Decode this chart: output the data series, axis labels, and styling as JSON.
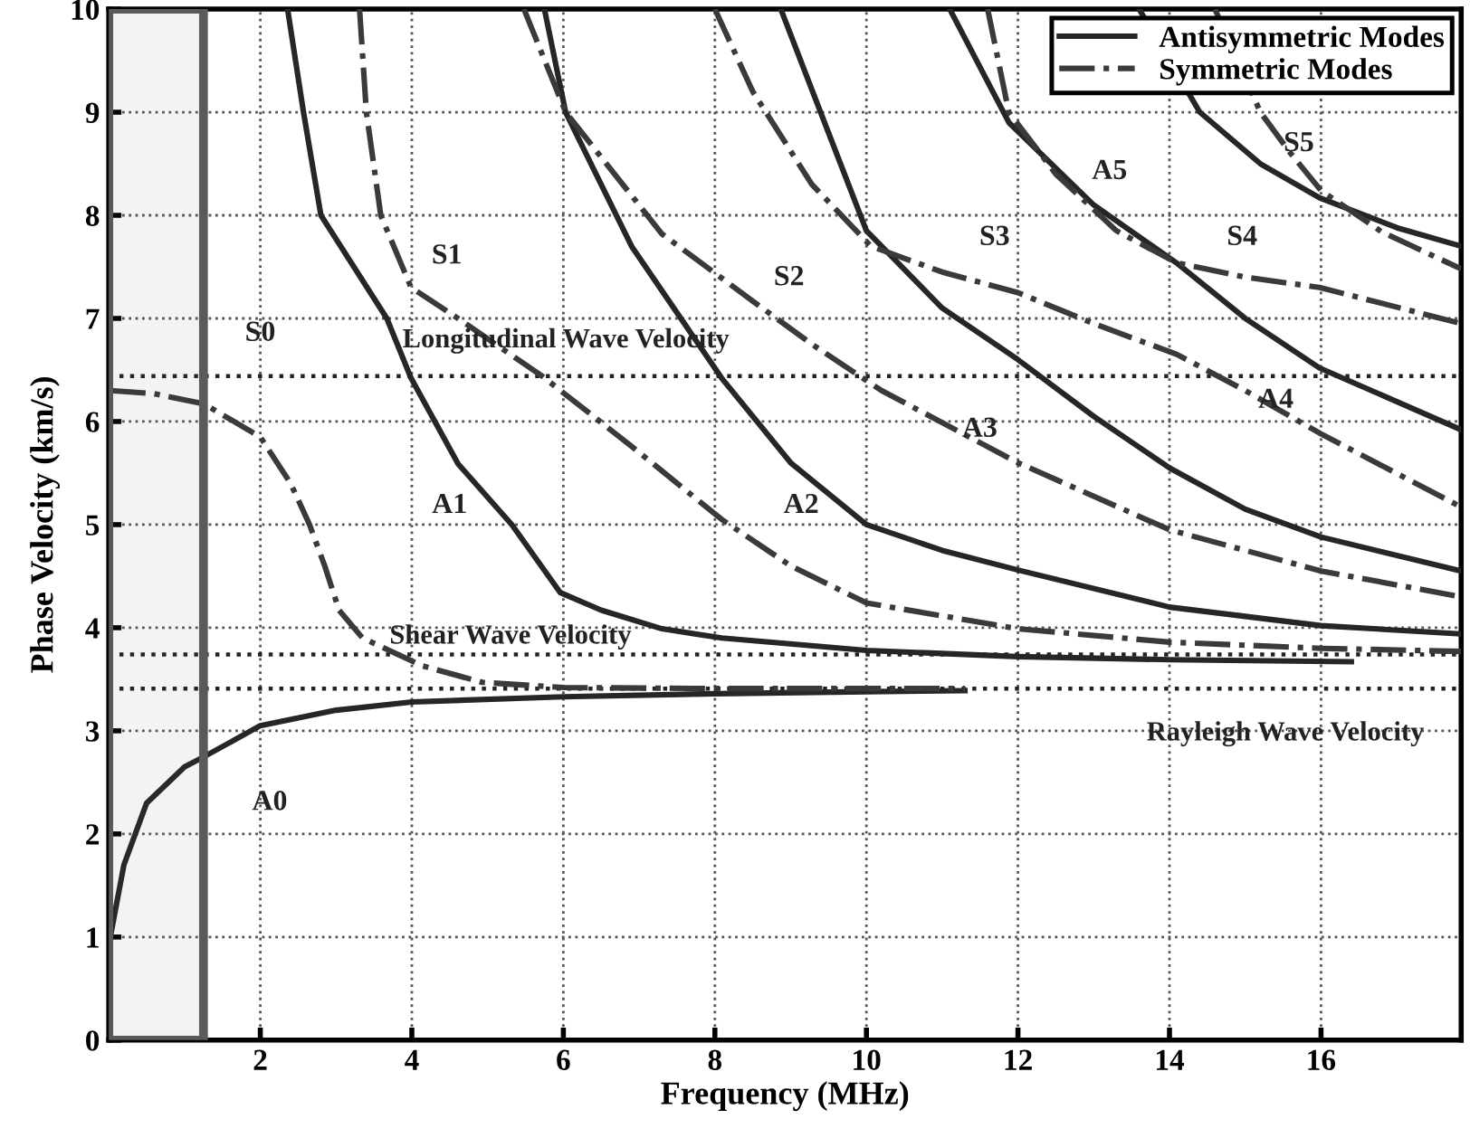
{
  "chart_data": {
    "type": "line",
    "xlabel": "Frequency (MHz)",
    "ylabel": "Phase Velocity (km/s)",
    "xlim": [
      0,
      17.85
    ],
    "ylim": [
      0,
      10
    ],
    "xticks": [
      2,
      4,
      6,
      8,
      10,
      12,
      14,
      16
    ],
    "yticks": [
      0,
      1,
      2,
      3,
      4,
      5,
      6,
      7,
      8,
      9,
      10
    ],
    "grid": true,
    "legend": "top right",
    "marker": "none",
    "series": [
      {
        "name": "Antisymmetric Modes",
        "color": "#262626",
        "line_style": "solid",
        "x": [
          0.02,
          0.2,
          0.5,
          1,
          1.26,
          2,
          3,
          4,
          6,
          8,
          10,
          11.3,
          null,
          2.36,
          2.57,
          2.8,
          3.67,
          3.99,
          4.61,
          5.32,
          5.96,
          6.5,
          7.3,
          8.09,
          10,
          12,
          14,
          16.4,
          null,
          5.75,
          6.03,
          6.9,
          8.09,
          9,
          10,
          11,
          12,
          14,
          16,
          17.85,
          null,
          8.87,
          9.5,
          10,
          11,
          12,
          13,
          14,
          15,
          16,
          17.85,
          null,
          11.1,
          11.88,
          13,
          14.09,
          15,
          15.98,
          17.85,
          null,
          13.6,
          14.4,
          15.2,
          15.98,
          17,
          17.85
        ],
        "values": [
          1.0,
          1.7,
          2.3,
          2.65,
          2.75,
          3.05,
          3.2,
          3.28,
          3.33,
          3.36,
          3.38,
          3.39,
          null,
          10,
          9,
          8,
          7,
          6.42,
          5.59,
          5.0,
          4.34,
          4.17,
          3.99,
          3.9,
          3.78,
          3.72,
          3.69,
          3.67,
          null,
          10,
          9,
          7.7,
          6.42,
          5.6,
          5.0,
          4.75,
          4.56,
          4.2,
          4.02,
          3.94,
          null,
          10,
          8.8,
          7.85,
          7.1,
          6.6,
          6.05,
          5.55,
          5.15,
          4.88,
          4.55,
          null,
          10,
          8.9,
          8.1,
          7.54,
          7.0,
          6.52,
          5.92,
          null,
          10,
          9.0,
          8.5,
          8.17,
          7.88,
          7.7
        ]
      },
      {
        "name": "Symmetric Modes",
        "color": "#3a3a3a",
        "line_style": "dashdot",
        "x": [
          0.02,
          0.6,
          1.26,
          2.0,
          2.4,
          2.65,
          2.85,
          3.04,
          3.35,
          4.14,
          4.93,
          6,
          8,
          11.3,
          null,
          3.31,
          3.4,
          3.59,
          3.99,
          4.61,
          5.72,
          6.9,
          8.09,
          9,
          10,
          12,
          14,
          16,
          17.85,
          null,
          5.48,
          6.03,
          7.3,
          8.57,
          9.28,
          10.2,
          12,
          14,
          16,
          17.85,
          null,
          8.0,
          8.5,
          9.28,
          10.06,
          11,
          12,
          13,
          14.1,
          15,
          16,
          17.85,
          null,
          11.6,
          11.88,
          12.5,
          13.3,
          14.09,
          15,
          15.98,
          17.85,
          null,
          14.6,
          15.2,
          15.6,
          16,
          16.8,
          17.85
        ],
        "values": [
          6.3,
          6.27,
          6.17,
          5.85,
          5.4,
          5.0,
          4.6,
          4.17,
          3.9,
          3.63,
          3.47,
          3.42,
          3.41,
          3.41,
          null,
          10,
          9,
          8,
          7.3,
          7.0,
          6.44,
          5.76,
          5.05,
          4.6,
          4.24,
          3.99,
          3.86,
          3.8,
          3.77,
          null,
          10,
          9,
          7.82,
          7.13,
          6.75,
          6.3,
          5.6,
          4.95,
          4.55,
          4.3,
          null,
          10,
          9.2,
          8.3,
          7.7,
          7.45,
          7.25,
          6.95,
          6.65,
          6.3,
          5.88,
          5.17,
          null,
          10,
          9.0,
          8.4,
          7.85,
          7.54,
          7.4,
          7.3,
          6.95,
          null,
          10,
          9.0,
          8.6,
          8.24,
          7.84,
          7.48
        ]
      }
    ],
    "ref_lines": [
      {
        "axis": "y",
        "value": 6.44,
        "color": "#222222",
        "line_style": "dotted",
        "label": "Longitudinal Wave Velocity"
      },
      {
        "axis": "y",
        "value": 3.74,
        "color": "#222222",
        "line_style": "dotted",
        "label": "Shear Wave Velocity"
      },
      {
        "axis": "y",
        "value": 3.41,
        "color": "#222222",
        "line_style": "dotted",
        "label": "Rayleigh Wave Velocity"
      }
    ],
    "bands": [
      {
        "axis": "x",
        "from": 0,
        "to": 1.25,
        "color": "#5a5a5a"
      }
    ],
    "annotations": [
      "A0",
      "S0",
      "A1",
      "S1",
      "A2",
      "S2",
      "A3",
      "S3",
      "A4",
      "S4",
      "A5",
      "S5"
    ]
  }
}
